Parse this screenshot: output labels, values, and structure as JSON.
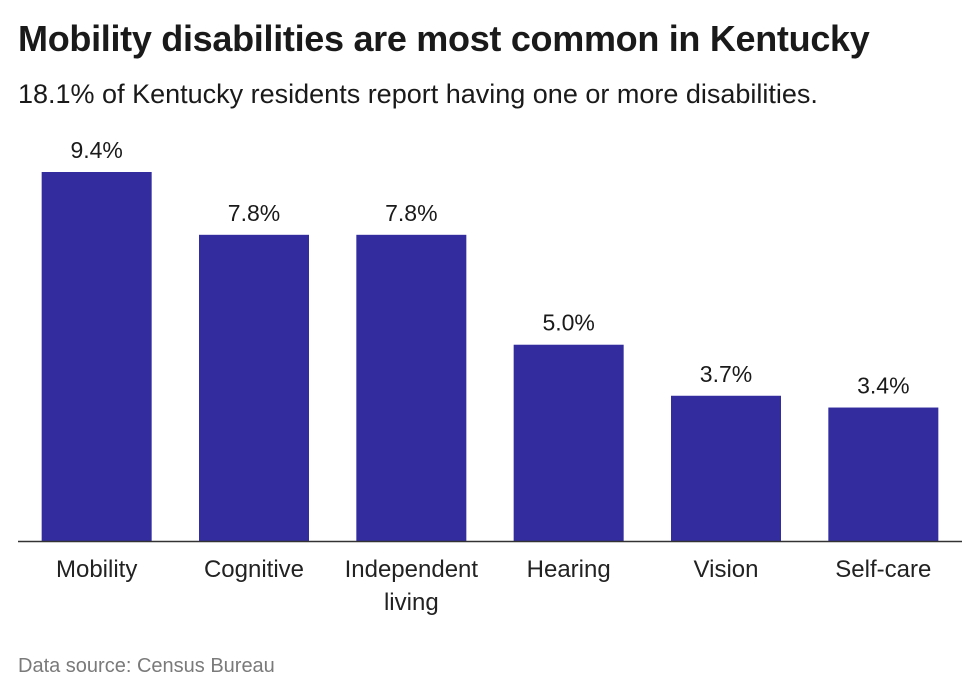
{
  "title": "Mobility disabilities are most common in Kentucky",
  "subtitle": "18.1% of Kentucky residents report having one or more disabilities.",
  "source": "Data source: Census Bureau",
  "colors": {
    "bar": "#332C9E",
    "axis": "#333333",
    "text": "#1a1a1a"
  },
  "chart_data": {
    "type": "bar",
    "categories": [
      "Mobility",
      "Cognitive",
      "Independent living",
      "Hearing",
      "Vision",
      "Self-care"
    ],
    "category_label_lines": [
      [
        "Mobility"
      ],
      [
        "Cognitive"
      ],
      [
        "Independent",
        "living"
      ],
      [
        "Hearing"
      ],
      [
        "Vision"
      ],
      [
        "Self-care"
      ]
    ],
    "values": [
      9.4,
      7.8,
      7.8,
      5.0,
      3.7,
      3.4
    ],
    "data_labels": [
      "9.4%",
      "7.8%",
      "7.8%",
      "5.0%",
      "3.7%",
      "3.4%"
    ],
    "ylim": [
      0,
      9.4
    ],
    "grid": false,
    "legend": "none"
  }
}
